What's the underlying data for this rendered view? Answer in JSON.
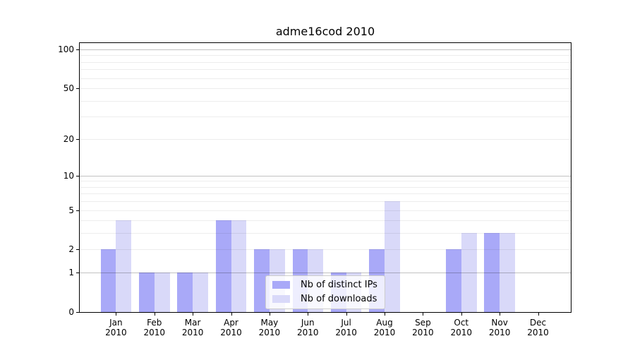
{
  "window": {
    "background": "#ffffff"
  },
  "chart_data": {
    "type": "bar",
    "title": "adme16cod 2010",
    "categories": [
      "Jan 2010",
      "Feb 2010",
      "Mar 2010",
      "Apr 2010",
      "May 2010",
      "Jun 2010",
      "Jul 2010",
      "Aug 2010",
      "Sep 2010",
      "Oct 2010",
      "Nov 2010",
      "Dec 2010"
    ],
    "series": [
      {
        "name": "Nb of distinct IPs",
        "color": "#a9a9f8",
        "values": [
          2,
          1,
          1,
          4,
          2,
          2,
          1,
          2,
          0,
          2,
          3,
          0
        ]
      },
      {
        "name": "Nb of downloads",
        "color": "#d9d9f9",
        "values": [
          4,
          1,
          1,
          4,
          2,
          2,
          1,
          6,
          0,
          3,
          3,
          0
        ]
      }
    ],
    "xlabel": "",
    "ylabel": "",
    "yaxis": {
      "scale": "log1p",
      "ylim": [
        0,
        112
      ],
      "ticks": [
        0,
        1,
        2,
        5,
        10,
        20,
        50,
        100
      ],
      "minor_gridlines": [
        2,
        3,
        4,
        5,
        6,
        7,
        8,
        9,
        20,
        30,
        40,
        50,
        60,
        70,
        80,
        90
      ],
      "major_gridlines": [
        1,
        10,
        100
      ]
    },
    "xaxis": {
      "xlim": [
        -0.945,
        11.855
      ],
      "bar_width": 0.4
    },
    "legend": {
      "position": "lower center"
    }
  }
}
